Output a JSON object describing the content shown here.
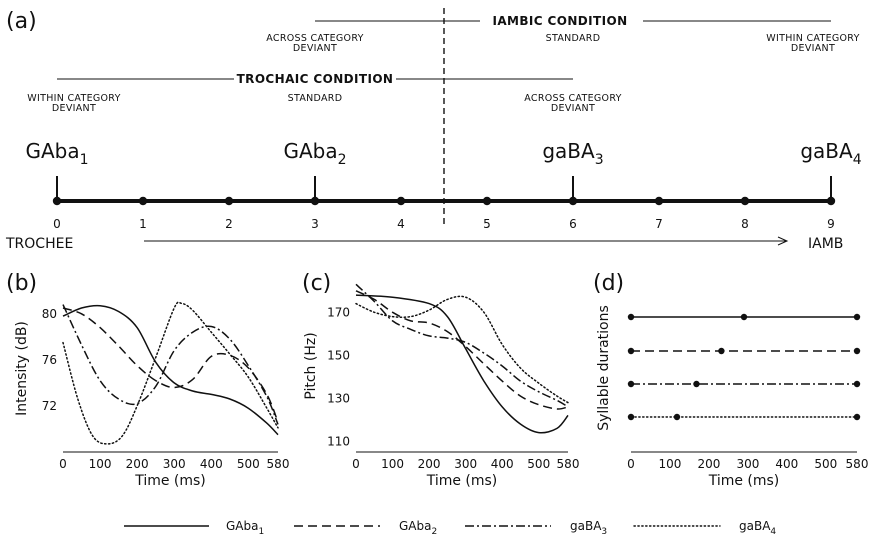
{
  "panels": {
    "a": "(a)",
    "b": "(b)",
    "c": "(c)",
    "d": "(d)"
  },
  "panel_a": {
    "iambic_condition": "IAMBIC CONDITION",
    "trochaic_condition": "TROCHAIC CONDITION",
    "iambic_labels": [
      {
        "l1": "ACROSS CATEGORY",
        "l2": "DEVIANT",
        "step": 3
      },
      {
        "l1": "STANDARD",
        "l2": "",
        "step": 6
      },
      {
        "l1": "WITHIN CATEGORY",
        "l2": "DEVIANT",
        "step": 9
      }
    ],
    "trochaic_labels": [
      {
        "l1": "WITHIN CATEGORY",
        "l2": "DEVIANT",
        "step": 0
      },
      {
        "l1": "STANDARD",
        "l2": "",
        "step": 3
      },
      {
        "l1": "ACROSS CATEGORY",
        "l2": "DEVIANT",
        "step": 6
      }
    ],
    "stimuli": [
      {
        "base": "GAba",
        "sub": "1",
        "step": 0
      },
      {
        "base": "GAba",
        "sub": "2",
        "step": 3
      },
      {
        "base": "gaBA",
        "sub": "3",
        "step": 6
      },
      {
        "base": "gaBA",
        "sub": "4",
        "step": 9
      }
    ],
    "steps": [
      "0",
      "1",
      "2",
      "3",
      "4",
      "5",
      "6",
      "7",
      "8",
      "9"
    ],
    "boundary_step": 4.5,
    "continuum_start": "TROCHEE",
    "continuum_end": "IAMB"
  },
  "chart_data": [
    {
      "type": "line",
      "panel": "(b)",
      "xlabel": "Time (ms)",
      "ylabel": "Intensity (dB)",
      "xticks": [
        "0",
        "100",
        "200",
        "300",
        "400",
        "500",
        "580"
      ],
      "yticks": [
        "72",
        "76",
        "80"
      ],
      "xlim": [
        0,
        580
      ],
      "ylim": [
        68,
        82.5
      ],
      "series": [
        {
          "name": "GAba1",
          "style": "solid",
          "points": [
            [
              0,
              79.8
            ],
            [
              50,
              80.5
            ],
            [
              100,
              80.7
            ],
            [
              150,
              80.2
            ],
            [
              200,
              78.8
            ],
            [
              250,
              75.8
            ],
            [
              300,
              74
            ],
            [
              350,
              73.3
            ],
            [
              400,
              73
            ],
            [
              450,
              72.6
            ],
            [
              500,
              71.8
            ],
            [
              550,
              70.5
            ],
            [
              580,
              69.5
            ]
          ]
        },
        {
          "name": "GAba2",
          "style": "dashed",
          "points": [
            [
              0,
              80.5
            ],
            [
              50,
              80
            ],
            [
              100,
              78.8
            ],
            [
              150,
              77.2
            ],
            [
              200,
              75.5
            ],
            [
              250,
              74.2
            ],
            [
              300,
              73.6
            ],
            [
              350,
              74.3
            ],
            [
              400,
              76.3
            ],
            [
              450,
              76.4
            ],
            [
              500,
              75.3
            ],
            [
              550,
              73
            ],
            [
              580,
              70.6
            ]
          ]
        },
        {
          "name": "gaBA3",
          "style": "dashdot",
          "points": [
            [
              0,
              80.8
            ],
            [
              50,
              77.3
            ],
            [
              100,
              74.2
            ],
            [
              150,
              72.6
            ],
            [
              200,
              72.2
            ],
            [
              250,
              73.7
            ],
            [
              300,
              76.8
            ],
            [
              350,
              78.4
            ],
            [
              400,
              78.9
            ],
            [
              450,
              77.8
            ],
            [
              500,
              75.5
            ],
            [
              550,
              72.8
            ],
            [
              580,
              70.4
            ]
          ]
        },
        {
          "name": "gaBA4",
          "style": "dotted",
          "points": [
            [
              0,
              77.5
            ],
            [
              40,
              72.6
            ],
            [
              80,
              69.4
            ],
            [
              120,
              68.7
            ],
            [
              160,
              69.4
            ],
            [
              200,
              72
            ],
            [
              250,
              76.2
            ],
            [
              300,
              80.5
            ],
            [
              320,
              80.9
            ],
            [
              350,
              80.3
            ],
            [
              400,
              78.4
            ],
            [
              450,
              76.5
            ],
            [
              500,
              74.5
            ],
            [
              550,
              71.8
            ],
            [
              580,
              70.1
            ]
          ]
        }
      ]
    },
    {
      "type": "line",
      "panel": "(c)",
      "xlabel": "Time (ms)",
      "ylabel": "Pitch (Hz)",
      "xticks": [
        "0",
        "100",
        "200",
        "300",
        "400",
        "500",
        "580"
      ],
      "yticks": [
        "110",
        "130",
        "150",
        "170"
      ],
      "xlim": [
        0,
        580
      ],
      "ylim": [
        105,
        185
      ],
      "series": [
        {
          "name": "GAba1",
          "style": "solid",
          "points": [
            [
              0,
              178
            ],
            [
              100,
              177
            ],
            [
              200,
              174
            ],
            [
              250,
              168
            ],
            [
              300,
              153
            ],
            [
              350,
              138
            ],
            [
              400,
              126
            ],
            [
              450,
              118
            ],
            [
              500,
              114
            ],
            [
              550,
              116
            ],
            [
              580,
              122
            ]
          ]
        },
        {
          "name": "GAba2",
          "style": "dashed",
          "points": [
            [
              0,
              180
            ],
            [
              50,
              176
            ],
            [
              100,
              170
            ],
            [
              150,
              166
            ],
            [
              200,
              165
            ],
            [
              250,
              161
            ],
            [
              300,
              154
            ],
            [
              350,
              146
            ],
            [
              400,
              138
            ],
            [
              450,
              131
            ],
            [
              500,
              127
            ],
            [
              550,
              125
            ],
            [
              580,
              126
            ]
          ]
        },
        {
          "name": "gaBA3",
          "style": "dashdot",
          "points": [
            [
              0,
              183
            ],
            [
              50,
              175
            ],
            [
              100,
              166
            ],
            [
              150,
              162
            ],
            [
              200,
              159
            ],
            [
              250,
              158
            ],
            [
              300,
              156
            ],
            [
              350,
              151
            ],
            [
              400,
              145
            ],
            [
              450,
              138
            ],
            [
              500,
              133
            ],
            [
              550,
              129
            ],
            [
              580,
              126
            ]
          ]
        },
        {
          "name": "gaBA4",
          "style": "dotted",
          "points": [
            [
              0,
              174
            ],
            [
              50,
              170
            ],
            [
              100,
              168
            ],
            [
              150,
              168
            ],
            [
              200,
              171
            ],
            [
              250,
              176
            ],
            [
              300,
              177
            ],
            [
              350,
              170
            ],
            [
              400,
              155
            ],
            [
              450,
              144
            ],
            [
              500,
              137
            ],
            [
              550,
              131
            ],
            [
              580,
              128
            ]
          ]
        }
      ]
    },
    {
      "type": "line",
      "panel": "(d)",
      "xlabel": "Time (ms)",
      "ylabel": "Syllable durations",
      "xticks": [
        "0",
        "100",
        "200",
        "300",
        "400",
        "500",
        "580"
      ],
      "xlim": [
        0,
        580
      ],
      "series": [
        {
          "name": "GAba1",
          "style": "solid",
          "boundaries": [
            0,
            290,
            580
          ]
        },
        {
          "name": "GAba2",
          "style": "dashed",
          "boundaries": [
            0,
            232,
            580
          ]
        },
        {
          "name": "gaBA3",
          "style": "dashdot",
          "boundaries": [
            0,
            168,
            580
          ]
        },
        {
          "name": "gaBA4",
          "style": "dotted",
          "boundaries": [
            0,
            118,
            580
          ]
        }
      ]
    }
  ],
  "legend": [
    {
      "base": "GAba",
      "sub": "1",
      "style": "solid"
    },
    {
      "base": "GAba",
      "sub": "2",
      "style": "dashed"
    },
    {
      "base": "gaBA",
      "sub": "3",
      "style": "dashdot"
    },
    {
      "base": "gaBA",
      "sub": "4",
      "style": "dotted"
    }
  ]
}
